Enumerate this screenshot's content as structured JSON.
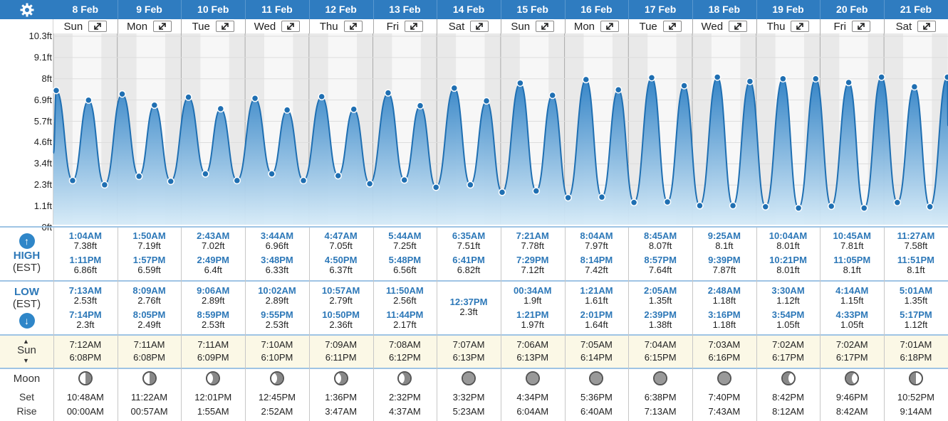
{
  "header": {
    "dates": [
      "8 Feb",
      "9 Feb",
      "10 Feb",
      "11 Feb",
      "12 Feb",
      "13 Feb",
      "14 Feb",
      "15 Feb",
      "16 Feb",
      "17 Feb",
      "18 Feb",
      "19 Feb",
      "20 Feb",
      "21 Feb"
    ],
    "weekdays": [
      "Sun",
      "Mon",
      "Tue",
      "Wed",
      "Thu",
      "Fri",
      "Sat",
      "Sun",
      "Mon",
      "Tue",
      "Wed",
      "Thu",
      "Fri",
      "Sat"
    ]
  },
  "colors": {
    "header_bg": "#2f7cc0",
    "tide_fill": "#3b8fd0",
    "tide_line": "#1f6fb2",
    "accent_text": "#2d78b8"
  },
  "chart_data": {
    "type": "area",
    "ylabel": "",
    "yticks": [
      "0ft",
      "1.1ft",
      "2.3ft",
      "3.4ft",
      "4.6ft",
      "5.7ft",
      "6.9ft",
      "8ft",
      "9.1ft",
      "10.3ft"
    ],
    "ylim": [
      0,
      10.3
    ],
    "series": [
      {
        "points": [
          {
            "day": 0,
            "time": "1:04AM",
            "ht": 7.38
          },
          {
            "day": 0,
            "time": "7:13AM",
            "ht": 2.53
          },
          {
            "day": 0,
            "time": "1:11PM",
            "ht": 6.86
          },
          {
            "day": 0,
            "time": "7:14PM",
            "ht": 2.3
          },
          {
            "day": 1,
            "time": "1:50AM",
            "ht": 7.19
          },
          {
            "day": 1,
            "time": "8:09AM",
            "ht": 2.76
          },
          {
            "day": 1,
            "time": "1:57PM",
            "ht": 6.59
          },
          {
            "day": 1,
            "time": "8:05PM",
            "ht": 2.49
          },
          {
            "day": 2,
            "time": "2:43AM",
            "ht": 7.02
          },
          {
            "day": 2,
            "time": "9:06AM",
            "ht": 2.89
          },
          {
            "day": 2,
            "time": "2:49PM",
            "ht": 6.4
          },
          {
            "day": 2,
            "time": "8:59PM",
            "ht": 2.53
          },
          {
            "day": 3,
            "time": "3:44AM",
            "ht": 6.96
          },
          {
            "day": 3,
            "time": "10:02AM",
            "ht": 2.89
          },
          {
            "day": 3,
            "time": "3:48PM",
            "ht": 6.33
          },
          {
            "day": 3,
            "time": "9:55PM",
            "ht": 2.53
          },
          {
            "day": 4,
            "time": "4:47AM",
            "ht": 7.05
          },
          {
            "day": 4,
            "time": "10:57AM",
            "ht": 2.79
          },
          {
            "day": 4,
            "time": "4:50PM",
            "ht": 6.37
          },
          {
            "day": 4,
            "time": "10:50PM",
            "ht": 2.36
          },
          {
            "day": 5,
            "time": "5:44AM",
            "ht": 7.25
          },
          {
            "day": 5,
            "time": "11:50AM",
            "ht": 2.56
          },
          {
            "day": 5,
            "time": "5:48PM",
            "ht": 6.56
          },
          {
            "day": 5,
            "time": "11:44PM",
            "ht": 2.17
          },
          {
            "day": 6,
            "time": "6:35AM",
            "ht": 7.51
          },
          {
            "day": 6,
            "time": "12:37PM",
            "ht": 2.3
          },
          {
            "day": 6,
            "time": "6:41PM",
            "ht": 6.82
          },
          {
            "day": 7,
            "time": "00:34AM",
            "ht": 1.9
          },
          {
            "day": 7,
            "time": "7:21AM",
            "ht": 7.78
          },
          {
            "day": 7,
            "time": "1:21PM",
            "ht": 1.97
          },
          {
            "day": 7,
            "time": "7:29PM",
            "ht": 7.12
          },
          {
            "day": 8,
            "time": "1:21AM",
            "ht": 1.61
          },
          {
            "day": 8,
            "time": "8:04AM",
            "ht": 7.97
          },
          {
            "day": 8,
            "time": "2:01PM",
            "ht": 1.64
          },
          {
            "day": 8,
            "time": "8:14PM",
            "ht": 7.42
          },
          {
            "day": 9,
            "time": "2:05AM",
            "ht": 1.35
          },
          {
            "day": 9,
            "time": "8:45AM",
            "ht": 8.07
          },
          {
            "day": 9,
            "time": "2:39PM",
            "ht": 1.38
          },
          {
            "day": 9,
            "time": "8:57PM",
            "ht": 7.64
          },
          {
            "day": 10,
            "time": "2:48AM",
            "ht": 1.18
          },
          {
            "day": 10,
            "time": "9:25AM",
            "ht": 8.1
          },
          {
            "day": 10,
            "time": "3:16PM",
            "ht": 1.18
          },
          {
            "day": 10,
            "time": "9:39PM",
            "ht": 7.87
          },
          {
            "day": 11,
            "time": "3:30AM",
            "ht": 1.12
          },
          {
            "day": 11,
            "time": "10:04AM",
            "ht": 8.01
          },
          {
            "day": 11,
            "time": "3:54PM",
            "ht": 1.05
          },
          {
            "day": 11,
            "time": "10:21PM",
            "ht": 8.01
          },
          {
            "day": 12,
            "time": "4:14AM",
            "ht": 1.15
          },
          {
            "day": 12,
            "time": "10:45AM",
            "ht": 7.81
          },
          {
            "day": 12,
            "time": "4:33PM",
            "ht": 1.05
          },
          {
            "day": 12,
            "time": "11:05PM",
            "ht": 8.1
          },
          {
            "day": 13,
            "time": "5:01AM",
            "ht": 1.35
          },
          {
            "day": 13,
            "time": "11:27AM",
            "ht": 7.58
          },
          {
            "day": 13,
            "time": "5:17PM",
            "ht": 1.12
          },
          {
            "day": 13,
            "time": "11:51PM",
            "ht": 8.1
          }
        ]
      }
    ],
    "grid": true
  },
  "labels": {
    "high": "HIGH",
    "low": "LOW",
    "tz": "(EST)",
    "sun": "Sun",
    "moon": "Moon",
    "set": "Set",
    "rise": "Rise"
  },
  "high": [
    {
      "t1": "1:04AM",
      "h1": "7.38ft",
      "t2": "1:11PM",
      "h2": "6.86ft"
    },
    {
      "t1": "1:50AM",
      "h1": "7.19ft",
      "t2": "1:57PM",
      "h2": "6.59ft"
    },
    {
      "t1": "2:43AM",
      "h1": "7.02ft",
      "t2": "2:49PM",
      "h2": "6.4ft"
    },
    {
      "t1": "3:44AM",
      "h1": "6.96ft",
      "t2": "3:48PM",
      "h2": "6.33ft"
    },
    {
      "t1": "4:47AM",
      "h1": "7.05ft",
      "t2": "4:50PM",
      "h2": "6.37ft"
    },
    {
      "t1": "5:44AM",
      "h1": "7.25ft",
      "t2": "5:48PM",
      "h2": "6.56ft"
    },
    {
      "t1": "6:35AM",
      "h1": "7.51ft",
      "t2": "6:41PM",
      "h2": "6.82ft"
    },
    {
      "t1": "7:21AM",
      "h1": "7.78ft",
      "t2": "7:29PM",
      "h2": "7.12ft"
    },
    {
      "t1": "8:04AM",
      "h1": "7.97ft",
      "t2": "8:14PM",
      "h2": "7.42ft"
    },
    {
      "t1": "8:45AM",
      "h1": "8.07ft",
      "t2": "8:57PM",
      "h2": "7.64ft"
    },
    {
      "t1": "9:25AM",
      "h1": "8.1ft",
      "t2": "9:39PM",
      "h2": "7.87ft"
    },
    {
      "t1": "10:04AM",
      "h1": "8.01ft",
      "t2": "10:21PM",
      "h2": "8.01ft"
    },
    {
      "t1": "10:45AM",
      "h1": "7.81ft",
      "t2": "11:05PM",
      "h2": "8.1ft"
    },
    {
      "t1": "11:27AM",
      "h1": "7.58ft",
      "t2": "11:51PM",
      "h2": "8.1ft"
    }
  ],
  "low": [
    {
      "t1": "7:13AM",
      "h1": "2.53ft",
      "t2": "7:14PM",
      "h2": "2.3ft"
    },
    {
      "t1": "8:09AM",
      "h1": "2.76ft",
      "t2": "8:05PM",
      "h2": "2.49ft"
    },
    {
      "t1": "9:06AM",
      "h1": "2.89ft",
      "t2": "8:59PM",
      "h2": "2.53ft"
    },
    {
      "t1": "10:02AM",
      "h1": "2.89ft",
      "t2": "9:55PM",
      "h2": "2.53ft"
    },
    {
      "t1": "10:57AM",
      "h1": "2.79ft",
      "t2": "10:50PM",
      "h2": "2.36ft"
    },
    {
      "t1": "11:50AM",
      "h1": "2.56ft",
      "t2": "11:44PM",
      "h2": "2.17ft"
    },
    {
      "t1": "",
      "h1": "",
      "t2": "12:37PM",
      "h2": "2.3ft",
      "single": true
    },
    {
      "t1": "00:34AM",
      "h1": "1.9ft",
      "t2": "1:21PM",
      "h2": "1.97ft"
    },
    {
      "t1": "1:21AM",
      "h1": "1.61ft",
      "t2": "2:01PM",
      "h2": "1.64ft"
    },
    {
      "t1": "2:05AM",
      "h1": "1.35ft",
      "t2": "2:39PM",
      "h2": "1.38ft"
    },
    {
      "t1": "2:48AM",
      "h1": "1.18ft",
      "t2": "3:16PM",
      "h2": "1.18ft"
    },
    {
      "t1": "3:30AM",
      "h1": "1.12ft",
      "t2": "3:54PM",
      "h2": "1.05ft"
    },
    {
      "t1": "4:14AM",
      "h1": "1.15ft",
      "t2": "4:33PM",
      "h2": "1.05ft"
    },
    {
      "t1": "5:01AM",
      "h1": "1.35ft",
      "t2": "5:17PM",
      "h2": "1.12ft"
    }
  ],
  "sun": [
    {
      "rise": "7:12AM",
      "set": "6:08PM"
    },
    {
      "rise": "7:11AM",
      "set": "6:08PM"
    },
    {
      "rise": "7:11AM",
      "set": "6:09PM"
    },
    {
      "rise": "7:10AM",
      "set": "6:10PM"
    },
    {
      "rise": "7:09AM",
      "set": "6:11PM"
    },
    {
      "rise": "7:08AM",
      "set": "6:12PM"
    },
    {
      "rise": "7:07AM",
      "set": "6:13PM"
    },
    {
      "rise": "7:06AM",
      "set": "6:13PM"
    },
    {
      "rise": "7:05AM",
      "set": "6:14PM"
    },
    {
      "rise": "7:04AM",
      "set": "6:15PM"
    },
    {
      "rise": "7:03AM",
      "set": "6:16PM"
    },
    {
      "rise": "7:02AM",
      "set": "6:17PM"
    },
    {
      "rise": "7:02AM",
      "set": "6:17PM"
    },
    {
      "rise": "7:01AM",
      "set": "6:18PM"
    }
  ],
  "moon": [
    {
      "phase": "last-quarter",
      "set": "10:48AM",
      "rise": "00:00AM"
    },
    {
      "phase": "last-quarter",
      "set": "11:22AM",
      "rise": "00:57AM"
    },
    {
      "phase": "waning-crescent",
      "set": "12:01PM",
      "rise": "1:55AM"
    },
    {
      "phase": "waning-crescent",
      "set": "12:45PM",
      "rise": "2:52AM"
    },
    {
      "phase": "waning-crescent",
      "set": "1:36PM",
      "rise": "3:47AM"
    },
    {
      "phase": "waning-crescent",
      "set": "2:32PM",
      "rise": "4:37AM"
    },
    {
      "phase": "new",
      "set": "3:32PM",
      "rise": "5:23AM"
    },
    {
      "phase": "new",
      "set": "4:34PM",
      "rise": "6:04AM"
    },
    {
      "phase": "new",
      "set": "5:36PM",
      "rise": "6:40AM"
    },
    {
      "phase": "new",
      "set": "6:38PM",
      "rise": "7:13AM"
    },
    {
      "phase": "new",
      "set": "7:40PM",
      "rise": "7:43AM"
    },
    {
      "phase": "waxing-crescent",
      "set": "8:42PM",
      "rise": "8:12AM"
    },
    {
      "phase": "waxing-crescent",
      "set": "9:46PM",
      "rise": "8:42AM"
    },
    {
      "phase": "first-quarter",
      "set": "10:52PM",
      "rise": "9:14AM"
    }
  ]
}
